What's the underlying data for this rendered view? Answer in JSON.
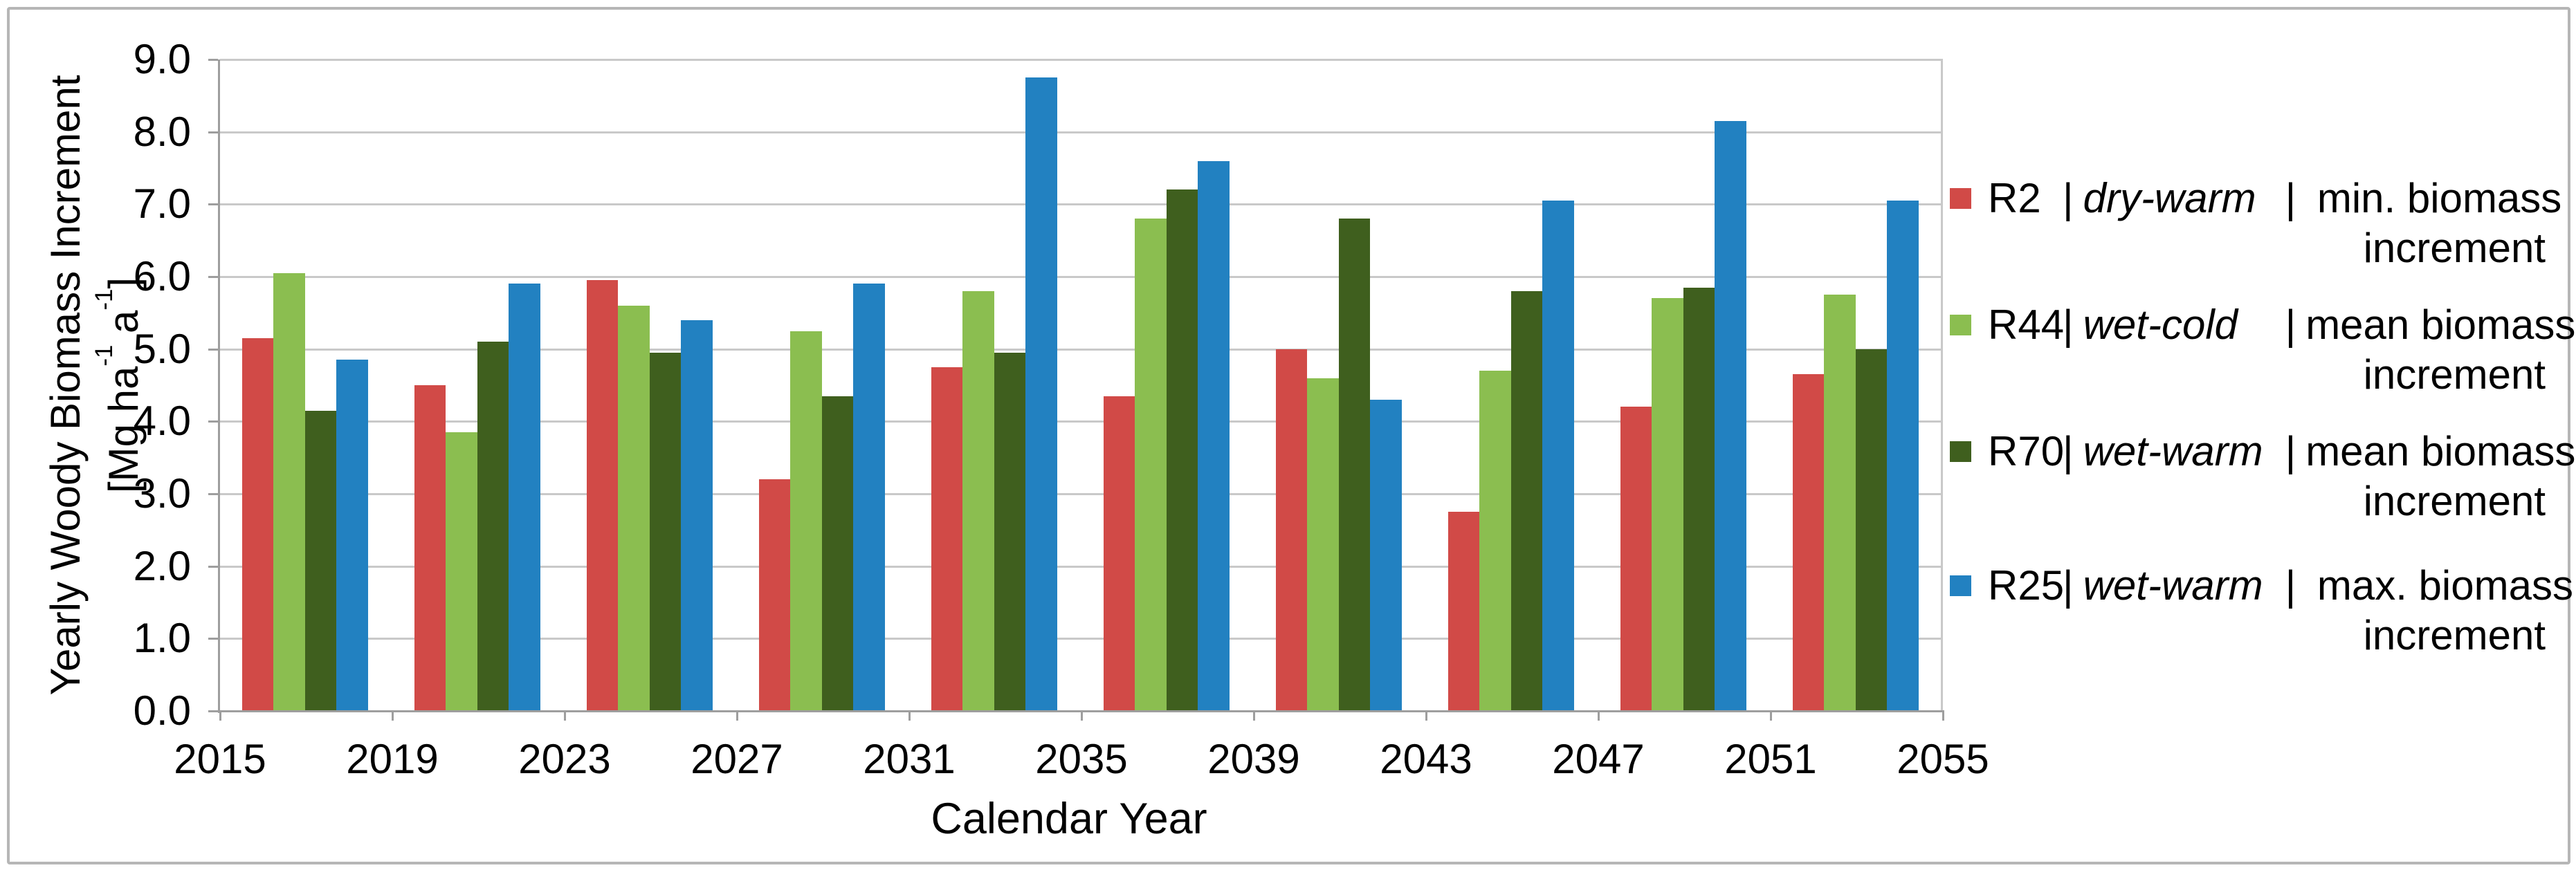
{
  "figure": {
    "x_axis": {
      "title": "Calendar Year",
      "tick_labels": [
        "2015",
        "2019",
        "2023",
        "2027",
        "2031",
        "2035",
        "2039",
        "2043",
        "2047",
        "2051",
        "2055"
      ]
    },
    "y_axis": {
      "title_line1": "Yearly Woody Biomass Increment",
      "unit_pre": "[Mg ha",
      "unit_sup1": "-1",
      "unit_mid": " a",
      "unit_sup2": "-1",
      "unit_post": "]",
      "tick_labels": [
        "9.0",
        "8.0",
        "7.0",
        "6.0",
        "5.0",
        "4.0",
        "3.0",
        "2.0",
        "1.0",
        "0.0"
      ]
    },
    "legend": {
      "items": [
        {
          "id": "R2",
          "sep": "|",
          "climate": "dry-warm",
          "sep2": "|",
          "rest": " min. biomass",
          "line2": "increment",
          "color": "#d14a47"
        },
        {
          "id": "R44",
          "sep": "|",
          "climate": "wet-cold",
          "sep2": "|",
          "rest": "mean biomass",
          "line2": "increment",
          "color": "#8bbe50"
        },
        {
          "id": "R70",
          "sep": "|",
          "climate": "wet-warm",
          "sep2": "|",
          "rest": "mean biomass",
          "line2": "increment",
          "color": "#3f5f1e"
        },
        {
          "id": "R25",
          "sep": "|",
          "climate": "wet-warm",
          "sep2": "|",
          "rest": " max. biomass",
          "line2": "increment",
          "color": "#2281c1"
        }
      ]
    }
  },
  "chart_data": {
    "type": "bar",
    "title": "",
    "xlabel": "Calendar Year",
    "ylabel": "Yearly Woody Biomass Increment [Mg ha-1 a-1]",
    "ylim": [
      0.0,
      9.0
    ],
    "ytick_step": 1.0,
    "grid": true,
    "legend_position": "right",
    "x_tick_years": [
      2015,
      2019,
      2023,
      2027,
      2031,
      2035,
      2039,
      2043,
      2047,
      2051,
      2055
    ],
    "categories": [
      "2015-2019",
      "2019-2023",
      "2023-2027",
      "2027-2031",
      "2031-2035",
      "2035-2039",
      "2039-2043",
      "2043-2047",
      "2047-2051",
      "2051-2055"
    ],
    "series": [
      {
        "name": "R2 | dry-warm | min. biomass increment",
        "color": "#d14a47",
        "values": [
          5.15,
          4.5,
          5.95,
          3.2,
          4.75,
          4.35,
          5.0,
          2.75,
          4.2,
          4.65
        ]
      },
      {
        "name": "R44 | wet-cold | mean biomass increment",
        "color": "#8bbe50",
        "values": [
          6.05,
          3.85,
          5.6,
          5.25,
          5.8,
          6.8,
          4.6,
          4.7,
          5.7,
          5.75
        ]
      },
      {
        "name": "R70 | wet-warm | mean biomass increment",
        "color": "#3f5f1e",
        "values": [
          4.15,
          5.1,
          4.95,
          4.35,
          4.95,
          7.2,
          6.8,
          5.8,
          5.85,
          5.0
        ]
      },
      {
        "name": "R25 | wet-warm | max. biomass increment",
        "color": "#2281c1",
        "values": [
          4.85,
          5.9,
          5.4,
          5.9,
          8.75,
          7.6,
          4.3,
          7.05,
          8.15,
          7.05
        ]
      }
    ]
  }
}
